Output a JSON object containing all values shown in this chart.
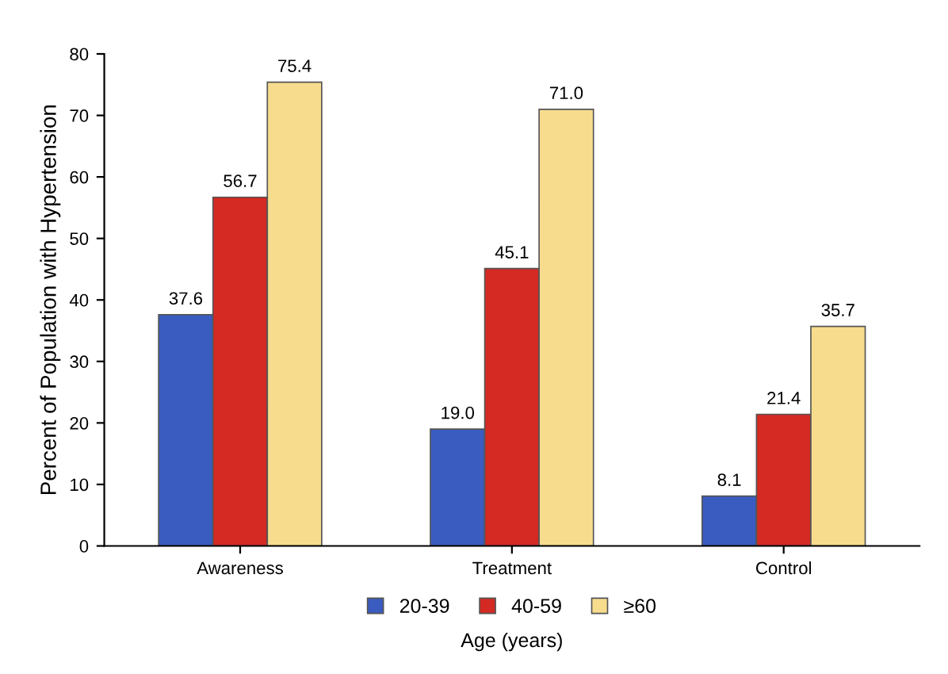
{
  "chart_data": {
    "type": "bar",
    "ylabel": "Percent of Population with Hypertension",
    "xlabel": "Age (years)",
    "categories": [
      "Awareness",
      "Treatment",
      "Control"
    ],
    "series": [
      {
        "name": "20-39",
        "color": "#3a5cc0",
        "values": [
          37.6,
          19.0,
          8.1
        ],
        "value_labels": [
          "37.6",
          "19.0",
          "8.1"
        ]
      },
      {
        "name": "40-59",
        "color": "#d42a23",
        "values": [
          56.7,
          45.1,
          21.4
        ],
        "value_labels": [
          "56.7",
          "45.1",
          "21.4"
        ]
      },
      {
        "name": "≥60",
        "color": "#f7dc8e",
        "values": [
          75.4,
          71.0,
          35.7
        ],
        "value_labels": [
          "75.4",
          "71.0",
          "35.7"
        ]
      }
    ],
    "ylim": [
      0,
      80
    ],
    "yticks": [
      0,
      10,
      20,
      30,
      40,
      50,
      60,
      70,
      80
    ],
    "grid": false,
    "legend": "bottom"
  }
}
